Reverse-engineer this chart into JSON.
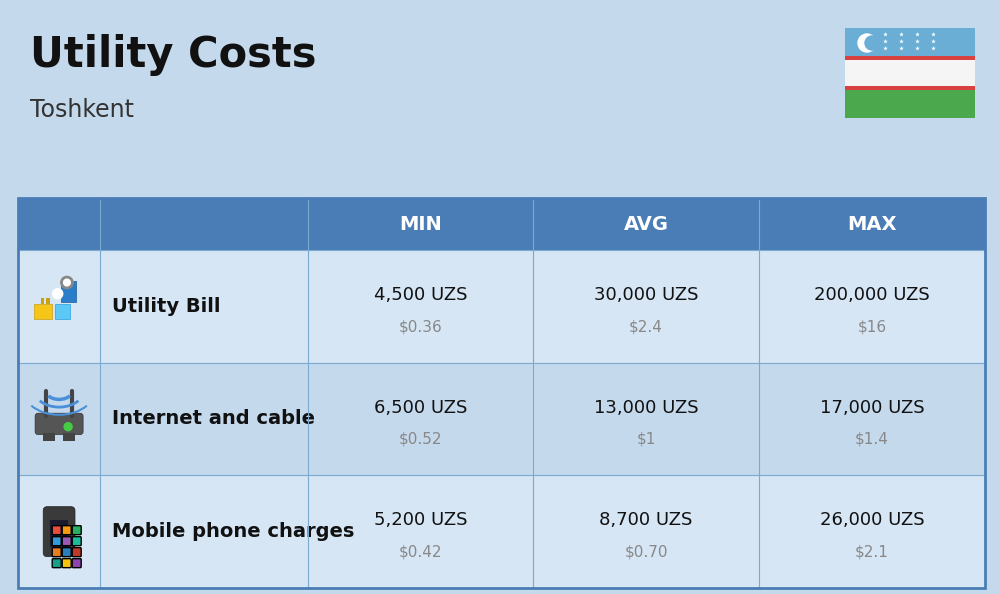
{
  "title": "Utility Costs",
  "subtitle": "Toshkent",
  "background_color": "#c5d9ed",
  "header_bg_color": "#4a7db5",
  "header_text_color": "#ffffff",
  "row_bg_color_odd": "#d6e6f5",
  "row_bg_color_even": "#c5d9ed",
  "table_border_color": "#4a7db5",
  "col_divider_color": "#7aaad0",
  "row_divider_color": "#7aaad0",
  "columns": [
    "",
    "",
    "MIN",
    "AVG",
    "MAX"
  ],
  "rows": [
    {
      "label": "Utility Bill",
      "min_uzs": "4,500 UZS",
      "min_usd": "$0.36",
      "avg_uzs": "30,000 UZS",
      "avg_usd": "$2.4",
      "max_uzs": "200,000 UZS",
      "max_usd": "$16"
    },
    {
      "label": "Internet and cable",
      "min_uzs": "6,500 UZS",
      "min_usd": "$0.52",
      "avg_uzs": "13,000 UZS",
      "avg_usd": "$1",
      "max_uzs": "17,000 UZS",
      "max_usd": "$1.4"
    },
    {
      "label": "Mobile phone charges",
      "min_uzs": "5,200 UZS",
      "min_usd": "$0.42",
      "avg_uzs": "8,700 UZS",
      "avg_usd": "$0.70",
      "max_uzs": "26,000 UZS",
      "max_usd": "$2.1"
    }
  ],
  "flag_blue": "#6aaed6",
  "flag_white": "#f5f5f5",
  "flag_green": "#4ca84c",
  "flag_red": "#d94040",
  "title_fontsize": 30,
  "subtitle_fontsize": 17,
  "header_fontsize": 14,
  "label_fontsize": 14,
  "value_fontsize": 13,
  "usd_fontsize": 11
}
